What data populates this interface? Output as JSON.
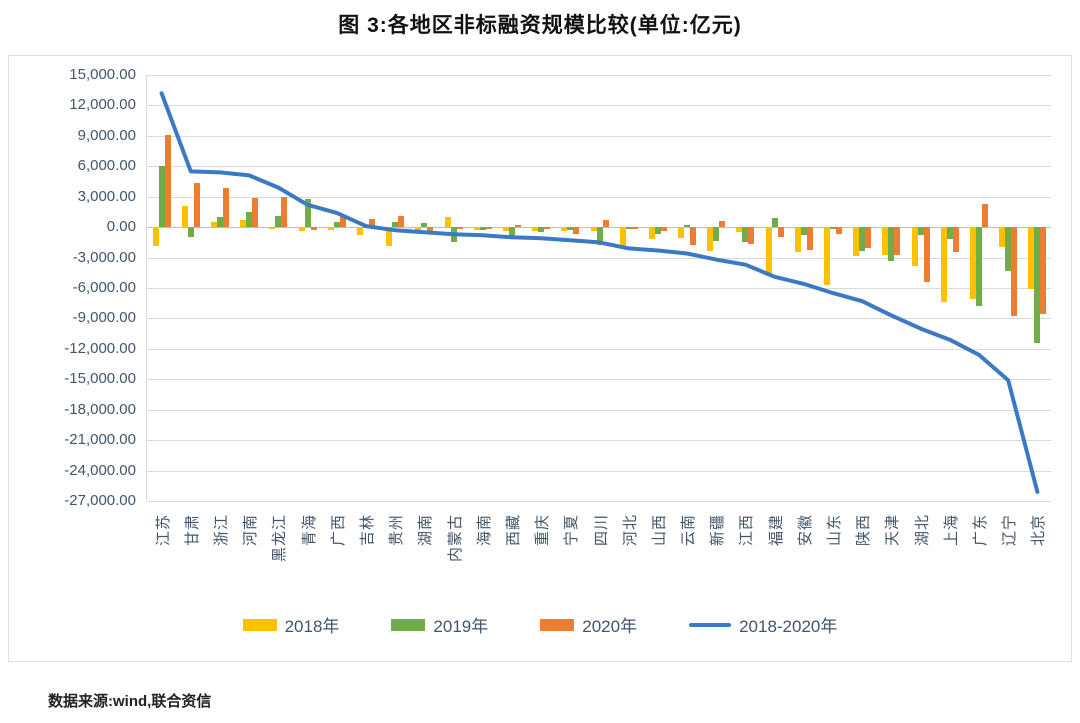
{
  "title": "图 3:各地区非标融资规模比较(单位:亿元)",
  "source_note": "数据来源:wind,联合资信",
  "colors": {
    "bar_2018": "#FFC000",
    "bar_2019": "#70AD47",
    "bar_2020": "#ED7D31",
    "line_2018_2020": "#3B79C2",
    "axis_text": "#44546A",
    "gridline": "#D9D9D9",
    "zero_line": "#BFBFBF",
    "chart_border": "#D9E0EA"
  },
  "chart_data": {
    "type": "bar",
    "subtype": "clustered bars with overlaid line",
    "title": "图 3:各地区非标融资规模比较(单位:亿元)",
    "xlabel": "",
    "ylabel": "",
    "ylim": [
      -27000,
      15000
    ],
    "ytick_step": 3000,
    "ytick_labels": [
      "15,000.00",
      "12,000.00",
      "9,000.00",
      "6,000.00",
      "3,000.00",
      "0.00",
      "-3,000.00",
      "-6,000.00",
      "-9,000.00",
      "-12,000.00",
      "-15,000.00",
      "-18,000.00",
      "-21,000.00",
      "-24,000.00",
      "-27,000.00"
    ],
    "grid": true,
    "legend_position": "bottom",
    "categories": [
      "江苏",
      "甘肃",
      "浙江",
      "河南",
      "黑龙江",
      "青海",
      "广西",
      "吉林",
      "贵州",
      "湖南",
      "内蒙古",
      "海南",
      "西藏",
      "重庆",
      "宁夏",
      "四川",
      "河北",
      "山西",
      "云南",
      "新疆",
      "江西",
      "福建",
      "安徽",
      "山东",
      "陕西",
      "天津",
      "湖北",
      "上海",
      "广东",
      "辽宁",
      "北京"
    ],
    "series": [
      {
        "name": "2018年",
        "type": "bar",
        "color": "#FFC000",
        "values": [
          -1900,
          2100,
          500,
          700,
          -150,
          -350,
          -300,
          -800,
          -1900,
          -300,
          1000,
          -300,
          -400,
          -400,
          -350,
          -400,
          -1900,
          -1200,
          -1100,
          -2400,
          -500,
          -4800,
          -2500,
          -5700,
          -2800,
          -2700,
          -3800,
          -7400,
          -7100,
          -2000,
          -6100
        ]
      },
      {
        "name": "2019年",
        "type": "bar",
        "color": "#70AD47",
        "values": [
          6000,
          -1000,
          1000,
          1500,
          1100,
          2800,
          550,
          100,
          500,
          400,
          -1500,
          -300,
          -850,
          -500,
          -300,
          -1800,
          -150,
          -700,
          250,
          -1400,
          -1500,
          900,
          -800,
          -100,
          -2400,
          -3300,
          -800,
          -1200,
          -7800,
          -4300,
          -11400
        ]
      },
      {
        "name": "2020年",
        "type": "bar",
        "color": "#ED7D31",
        "values": [
          9100,
          4400,
          3900,
          2900,
          2950,
          -250,
          1150,
          800,
          1100,
          -600,
          -200,
          -200,
          250,
          -200,
          -650,
          700,
          -50,
          -400,
          -1750,
          600,
          -1700,
          -1000,
          -2300,
          -700,
          -2100,
          -2700,
          -5400,
          -2500,
          2300,
          -8800,
          -8600
        ]
      },
      {
        "name": "2018-2020年",
        "type": "line",
        "color": "#3B79C2",
        "values": [
          13200,
          5500,
          5400,
          5100,
          3900,
          2200,
          1400,
          100,
          -300,
          -500,
          -700,
          -800,
          -1000,
          -1100,
          -1300,
          -1500,
          -2100,
          -2300,
          -2600,
          -3200,
          -3700,
          -4900,
          -5600,
          -6500,
          -7300,
          -8700,
          -10000,
          -11100,
          -12600,
          -15100,
          -26100
        ]
      }
    ]
  }
}
